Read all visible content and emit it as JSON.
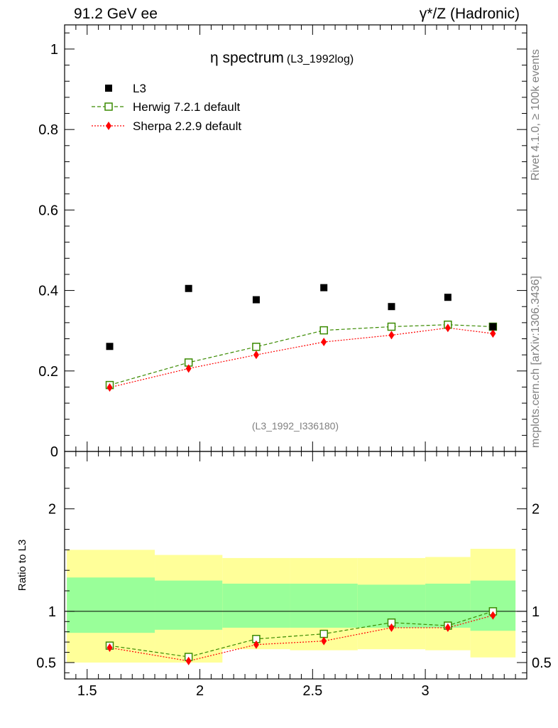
{
  "header": {
    "left": "91.2 GeV ee",
    "right": "γ*/Z (Hadronic)"
  },
  "side_labels": {
    "rivet": "Rivet 4.1.0, ≥ 100k events",
    "mcplots": "mcplots.cern.ch [arXiv:1306.3436]"
  },
  "colors": {
    "data": "#000000",
    "herwig": "#3a8a00",
    "sherpa": "#ff0000",
    "band_outer": "#ffff99",
    "band_inner": "#99ff99",
    "watermark": "#808080"
  },
  "chart_data": [
    {
      "type": "scatter",
      "title": "η spectrum",
      "title_sub": "(L3_1992log)",
      "watermark": "(L3_1992_I336180)",
      "xlim": [
        1.4,
        3.45
      ],
      "ylim": [
        0,
        1.06
      ],
      "yticks": [
        0,
        0.2,
        0.4,
        0.6,
        0.8,
        1
      ],
      "ytick_labels": [
        "0",
        "0.2",
        "0.4",
        "0.6",
        "0.8",
        "1"
      ],
      "x": [
        1.6,
        1.95,
        2.25,
        2.55,
        2.85,
        3.1,
        3.3
      ],
      "legend_position": "top-left",
      "series": [
        {
          "name": "L3",
          "marker": "filled-square",
          "values": [
            0.261,
            0.405,
            0.377,
            0.407,
            0.36,
            0.383,
            0.31
          ]
        },
        {
          "name": "Herwig 7.2.1 default",
          "marker": "open-square",
          "line": "dashed",
          "values": [
            0.165,
            0.221,
            0.26,
            0.301,
            0.31,
            0.315,
            0.31
          ]
        },
        {
          "name": "Sherpa 2.2.9 default",
          "marker": "diamond",
          "line": "dotted",
          "values": [
            0.159,
            0.206,
            0.24,
            0.272,
            0.289,
            0.307,
            0.293
          ]
        }
      ]
    },
    {
      "type": "line",
      "ylabel": "Ratio to L3",
      "xlim": [
        1.4,
        3.45
      ],
      "ylim": [
        0.34,
        2.56
      ],
      "xticks": [
        1.5,
        2,
        2.5,
        3
      ],
      "xtick_labels": [
        "1.5",
        "2",
        "2.5",
        "3"
      ],
      "yticks": [
        0.5,
        1,
        2
      ],
      "ytick_labels": [
        "0.5",
        "1",
        "2"
      ],
      "reference_line": 1,
      "bands": [
        {
          "x0": 1.4,
          "x1": 1.8,
          "outer": [
            0.5,
            1.6
          ],
          "inner": [
            0.79,
            1.33
          ]
        },
        {
          "x0": 1.8,
          "x1": 2.1,
          "outer": [
            0.5,
            1.55
          ],
          "inner": [
            0.82,
            1.3
          ]
        },
        {
          "x0": 2.1,
          "x1": 2.4,
          "outer": [
            0.63,
            1.52
          ],
          "inner": [
            0.84,
            1.27
          ]
        },
        {
          "x0": 2.4,
          "x1": 2.7,
          "outer": [
            0.62,
            1.52
          ],
          "inner": [
            0.84,
            1.27
          ]
        },
        {
          "x0": 2.7,
          "x1": 3.0,
          "outer": [
            0.63,
            1.52
          ],
          "inner": [
            0.84,
            1.26
          ]
        },
        {
          "x0": 3.0,
          "x1": 3.2,
          "outer": [
            0.62,
            1.53
          ],
          "inner": [
            0.84,
            1.27
          ]
        },
        {
          "x0": 3.2,
          "x1": 3.4,
          "outer": [
            0.55,
            1.61
          ],
          "inner": [
            0.81,
            1.3
          ]
        }
      ],
      "x": [
        1.6,
        1.95,
        2.25,
        2.55,
        2.85,
        3.1,
        3.3
      ],
      "series": [
        {
          "name": "Herwig 7.2.1 default",
          "values": [
            0.665,
            0.555,
            0.73,
            0.78,
            0.89,
            0.86,
            1.0
          ]
        },
        {
          "name": "Sherpa 2.2.9 default",
          "values": [
            0.645,
            0.515,
            0.675,
            0.71,
            0.84,
            0.84,
            0.96
          ]
        }
      ]
    }
  ]
}
